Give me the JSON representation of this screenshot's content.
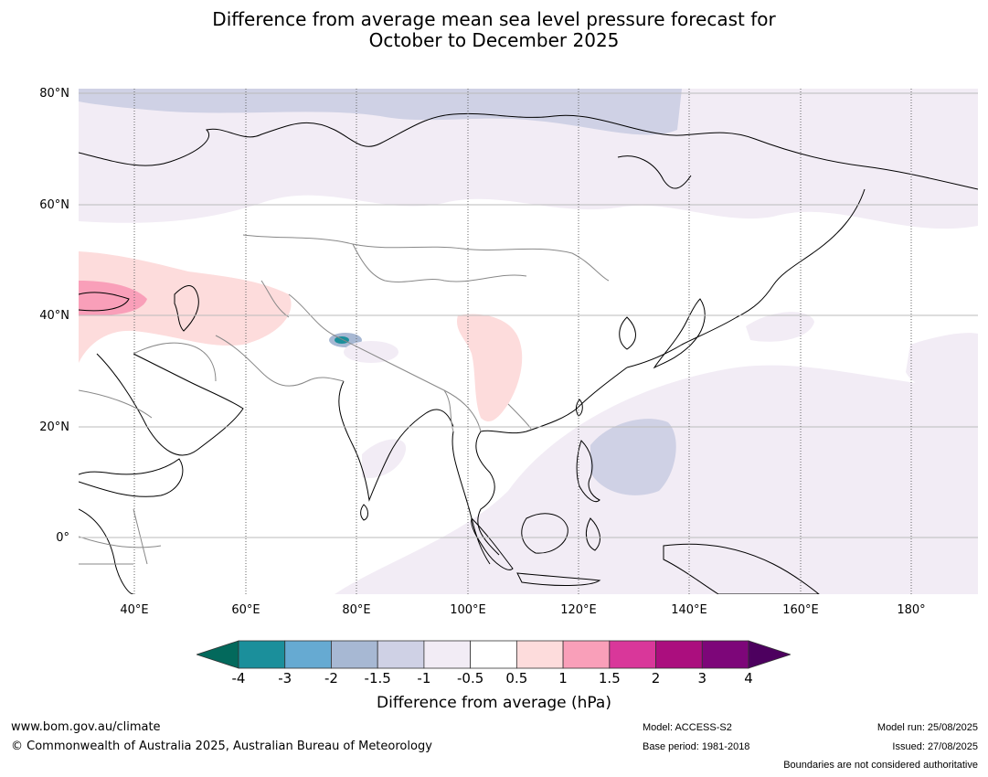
{
  "title_line1": "Difference from average mean sea level pressure forecast for",
  "title_line2": "October to December 2025",
  "lat_labels": [
    "80°N",
    "60°N",
    "40°N",
    "20°N",
    "0°"
  ],
  "lon_labels": [
    "40°E",
    "60°E",
    "80°E",
    "100°E",
    "120°E",
    "140°E",
    "160°E",
    "180°"
  ],
  "colorbar": {
    "ticks": [
      "-4",
      "-3",
      "-2",
      "-1.5",
      "-1",
      "-0.5",
      "0.5",
      "1",
      "1.5",
      "2",
      "3",
      "4"
    ],
    "colors": [
      "#1b8f9b",
      "#66aad2",
      "#a7b8d3",
      "#cfd1e5",
      "#f2ecf5",
      "#ffffff",
      "#fddcdc",
      "#f99fb9",
      "#d9379a",
      "#ab0e7e",
      "#7d0679"
    ],
    "under_color": "#03695c",
    "over_color": "#4d005f",
    "label": "Difference from average (hPa)"
  },
  "colors": {
    "land_outline": "#000000",
    "border": "#888888",
    "grid": "#bbbbbb"
  },
  "footer": {
    "website": "www.bom.gov.au/climate",
    "copyright": "© Commonwealth of Australia 2025, Australian Bureau of Meteorology",
    "model": "Model: ACCESS-S2",
    "base_period": "Base period: 1981-2018",
    "model_run": "Model run: 25/08/2025",
    "issued": "Issued: 27/08/2025",
    "disclaimer": "Boundaries are not considered authoritative"
  }
}
